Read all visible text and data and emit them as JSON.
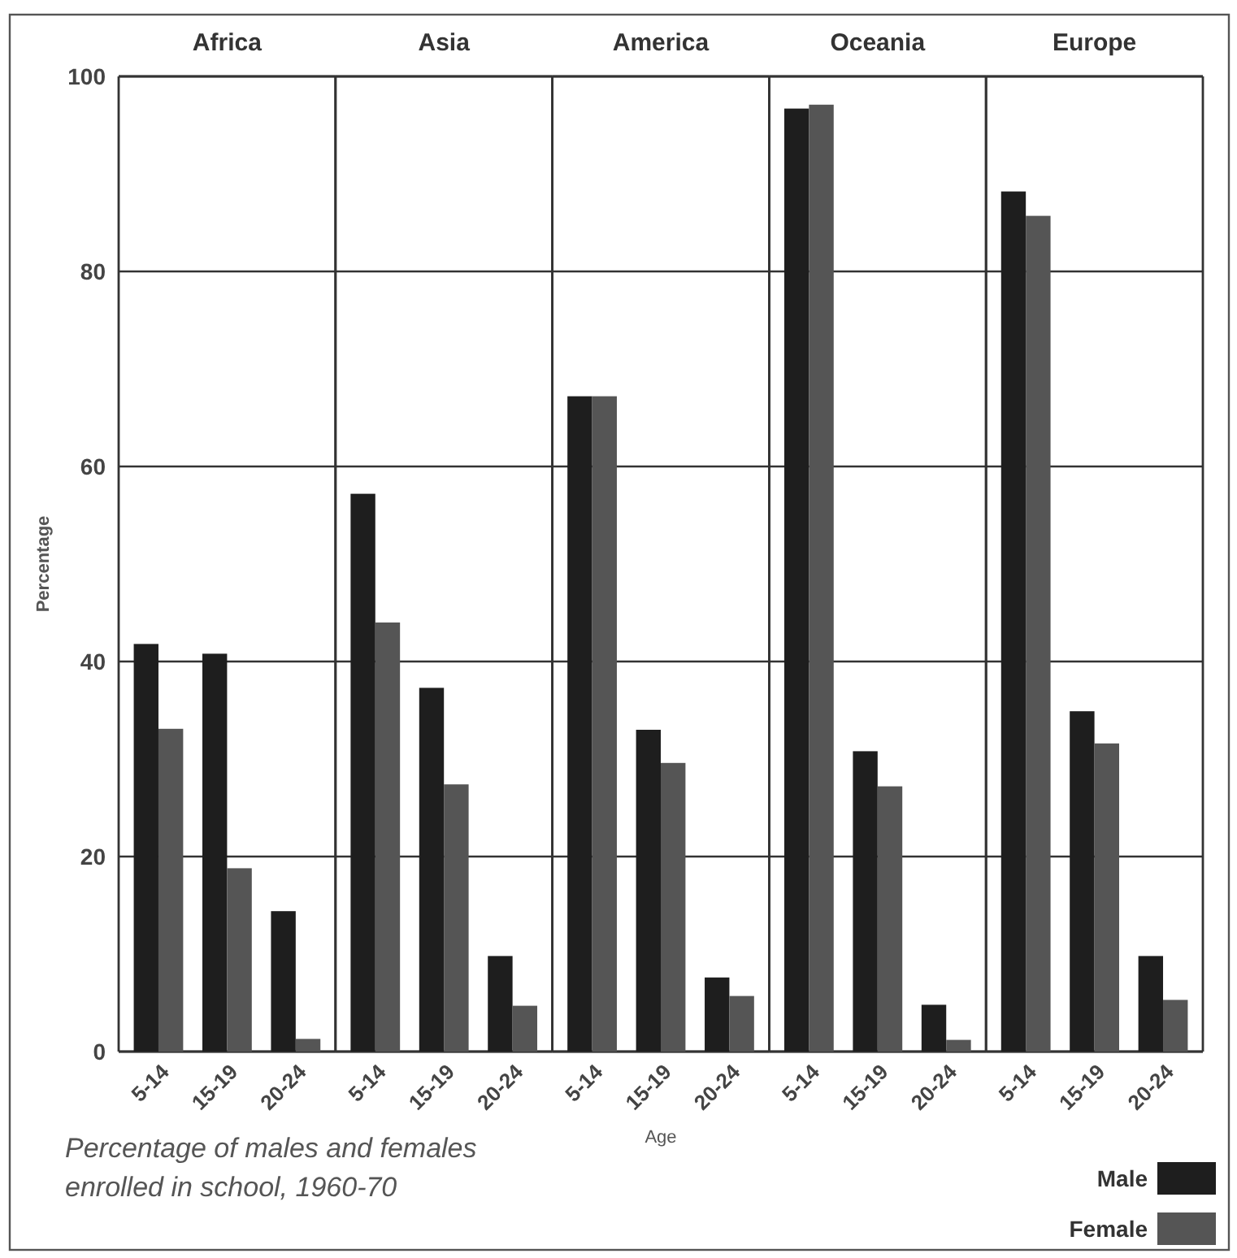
{
  "chart_data": [
    {
      "type": "bar",
      "title": "Africa",
      "ylabel": "Percentage",
      "categories": [
        "5-14",
        "15-19",
        "20-24"
      ],
      "series": [
        {
          "color": "#1e1e1e",
          "values": [
            41.8,
            40.8,
            14.4
          ]
        },
        {
          "color": "#555555",
          "values": [
            33.1,
            18.8,
            1.3
          ]
        }
      ],
      "ylim": [
        0,
        100
      ],
      "yticks": [
        0,
        20,
        40,
        60,
        80,
        100
      ],
      "grid": "y",
      "annotations": [
        "Percentage of males and females enrolled in school, 1960-70"
      ]
    },
    {
      "type": "bar",
      "title": "Asia",
      "categories": [
        "5-14",
        "15-19",
        "20-24"
      ],
      "series": [
        {
          "color": "#1e1e1e",
          "values": [
            57.2,
            37.3,
            9.8
          ]
        },
        {
          "color": "#555555",
          "values": [
            44.0,
            27.4,
            4.7
          ]
        }
      ],
      "ylim": [
        0,
        100
      ],
      "yticks": [
        0,
        20,
        40,
        60,
        80,
        100
      ],
      "grid": "y",
      "tick_labels": "x"
    },
    {
      "type": "bar",
      "title": "America",
      "xlabel": "Age",
      "categories": [
        "5-14",
        "15-19",
        "20-24"
      ],
      "series": [
        {
          "color": "#1e1e1e",
          "values": [
            67.2,
            33.0,
            7.6
          ]
        },
        {
          "color": "#555555",
          "values": [
            67.2,
            29.6,
            5.7
          ]
        }
      ],
      "ylim": [
        0,
        100
      ],
      "yticks": [
        0,
        20,
        40,
        60,
        80,
        100
      ],
      "grid": "y",
      "tick_labels": "x"
    },
    {
      "type": "bar",
      "title": "Oceania",
      "categories": [
        "5-14",
        "15-19",
        "20-24"
      ],
      "series": [
        {
          "color": "#1e1e1e",
          "values": [
            96.7,
            30.8,
            4.8
          ]
        },
        {
          "color": "#555555",
          "values": [
            97.1,
            27.2,
            1.2
          ]
        }
      ],
      "ylim": [
        0,
        100
      ],
      "yticks": [
        0,
        20,
        40,
        60,
        80,
        100
      ],
      "grid": "y",
      "tick_labels": "x"
    },
    {
      "type": "bar",
      "title": "Europe",
      "categories": [
        "5-14",
        "15-19",
        "20-24"
      ],
      "series": [
        {
          "name": "Male",
          "color": "#1e1e1e",
          "values": [
            88.2,
            34.9,
            9.8
          ]
        },
        {
          "name": "Female",
          "color": "#555555",
          "values": [
            85.7,
            31.6,
            5.3
          ]
        }
      ],
      "ylim": [
        0,
        100
      ],
      "yticks": [
        0,
        20,
        40,
        60,
        80,
        100
      ],
      "grid": "y",
      "tick_labels": "x",
      "legend": "bottom right"
    }
  ]
}
